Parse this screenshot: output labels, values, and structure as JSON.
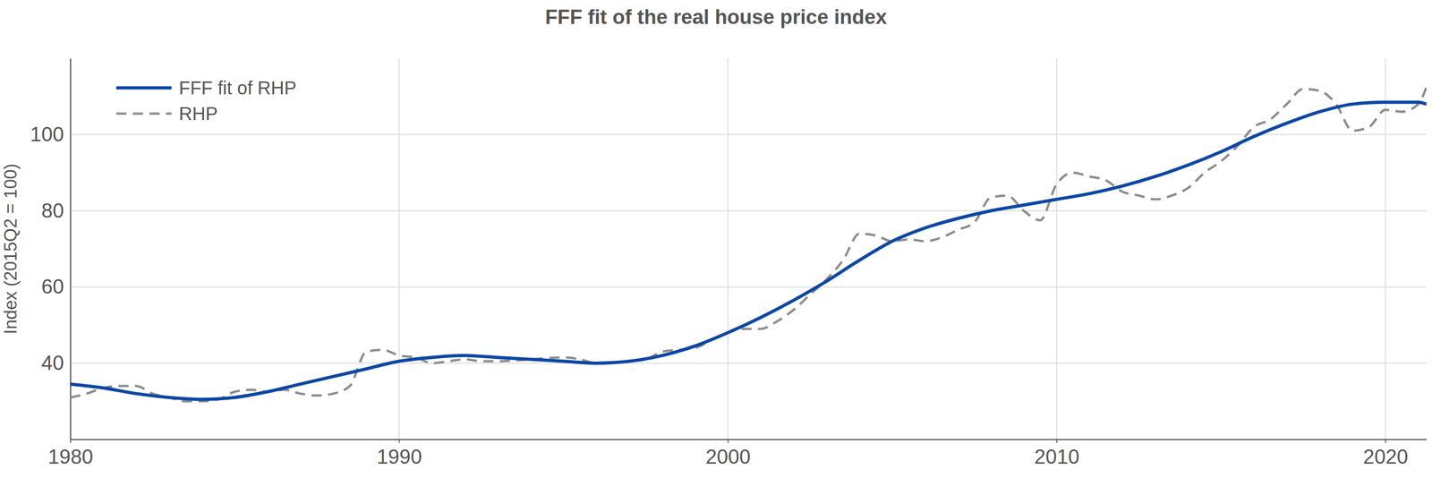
{
  "chart_data": {
    "type": "line",
    "title": "FFF fit of the real house price index",
    "y_label": "Index (2015Q2 = 100)",
    "xlim": [
      1980,
      2021.25
    ],
    "xticks": [
      1980,
      1990,
      2000,
      2010,
      2020
    ],
    "ylim": [
      20,
      120
    ],
    "yticks": [
      40,
      60,
      80,
      100
    ],
    "grid": true,
    "legend": "upper left",
    "series": [
      {
        "name": "FFF fit of RHP",
        "color": "#0a47a6",
        "line_style": "solid",
        "x": [
          1980,
          1981,
          1982,
          1983,
          1984,
          1985,
          1986,
          1987,
          1988,
          1989,
          1990,
          1991,
          1992,
          1993,
          1994,
          1995,
          1996,
          1997,
          1998,
          1999,
          2000,
          2001,
          2002,
          2003,
          2004,
          2005,
          2006,
          2007,
          2008,
          2009,
          2010,
          2011,
          2012,
          2013,
          2014,
          2015,
          2016,
          2017,
          2018,
          2019,
          2020,
          2021,
          2021.25
        ],
        "values": [
          34.5,
          33.5,
          32,
          31,
          30.5,
          31,
          32.5,
          34.5,
          36.5,
          38.5,
          40.5,
          41.5,
          42,
          41.5,
          41,
          40.5,
          40,
          40.5,
          42,
          44.5,
          48,
          52,
          56.5,
          61.5,
          67,
          72,
          75.5,
          78,
          80,
          81.5,
          83,
          84.5,
          86.5,
          89,
          92,
          95.5,
          99.5,
          103,
          106,
          108,
          108.5,
          108.5,
          108
        ]
      },
      {
        "name": "RHP",
        "color": "#8c8c8c",
        "line_style": "dashed",
        "x": [
          1980,
          1980.5,
          1981,
          1981.5,
          1982,
          1982.5,
          1983,
          1983.5,
          1984,
          1984.5,
          1985,
          1985.5,
          1986,
          1986.5,
          1987,
          1987.5,
          1988,
          1988.5,
          1989,
          1989.5,
          1990,
          1990.5,
          1991,
          1991.5,
          1992,
          1992.5,
          1993,
          1994,
          1995,
          1995.5,
          1996,
          1997,
          1997.5,
          1998,
          1999,
          1999.5,
          2000,
          2000.5,
          2001,
          2001.5,
          2002,
          2002.5,
          2003,
          2003.5,
          2004,
          2004.5,
          2005,
          2005.5,
          2006,
          2006.5,
          2007,
          2007.5,
          2008,
          2008.5,
          2009,
          2009.5,
          2010,
          2010.5,
          2011,
          2011.5,
          2012,
          2012.5,
          2013,
          2013.5,
          2014,
          2014.5,
          2015,
          2015.5,
          2016,
          2016.5,
          2017,
          2017.5,
          2018,
          2018.5,
          2019,
          2019.5,
          2020,
          2020.5,
          2021,
          2021.25
        ],
        "values": [
          31,
          32,
          33.5,
          34,
          34,
          32,
          31,
          30,
          30,
          30.5,
          32.5,
          33,
          32.5,
          33,
          32,
          31.5,
          32,
          34,
          43,
          43.5,
          42,
          41.5,
          40,
          40.5,
          41,
          40.5,
          40.5,
          41,
          41.5,
          41,
          40,
          40.5,
          41,
          43,
          44,
          46,
          48,
          49,
          49,
          51,
          54,
          58,
          62,
          67,
          74,
          73.5,
          72,
          72.5,
          72,
          73,
          75,
          77,
          83.5,
          84,
          80,
          77.5,
          87,
          90,
          89,
          88,
          85,
          84,
          83,
          84,
          86,
          90,
          93,
          97,
          102,
          104,
          108,
          112,
          111.5,
          108,
          101,
          102,
          106.5,
          106,
          108,
          112.5
        ]
      }
    ]
  }
}
